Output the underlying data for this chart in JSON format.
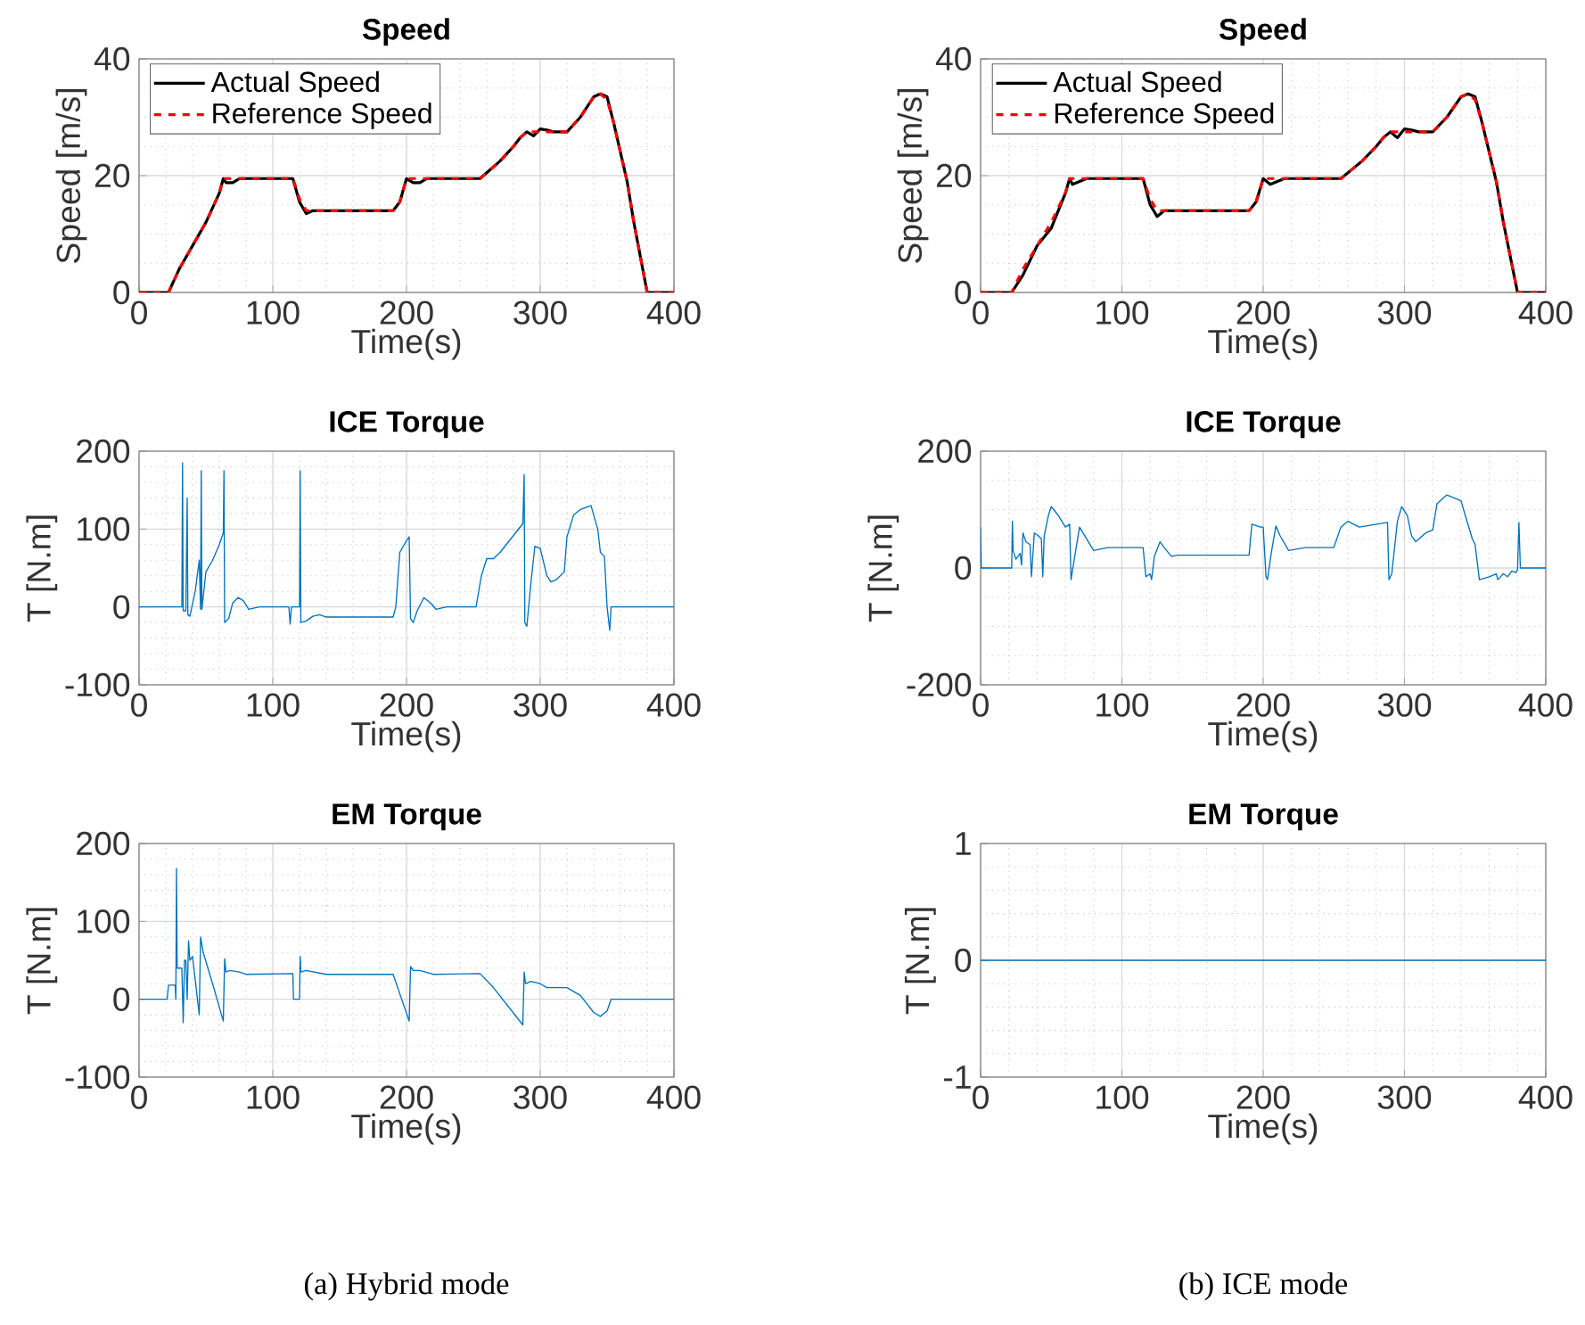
{
  "chart_data": [
    {
      "type": "line",
      "title": "Speed",
      "xlabel": "Time(s)",
      "ylabel": "Speed [m/s]",
      "xlim": [
        0,
        400
      ],
      "ylim": [
        0,
        40
      ],
      "xticks": [
        0,
        100,
        200,
        300,
        400
      ],
      "yticks": [
        0,
        20,
        40
      ],
      "grid": true,
      "legend": "top left",
      "x": [
        0,
        20,
        22,
        30,
        40,
        50,
        60,
        63,
        65,
        70,
        75,
        80,
        110,
        115,
        120,
        125,
        130,
        190,
        195,
        200,
        205,
        210,
        215,
        220,
        255,
        260,
        270,
        280,
        285,
        290,
        295,
        300,
        305,
        310,
        320,
        330,
        340,
        345,
        350,
        355,
        360,
        365,
        370,
        375,
        380,
        382,
        400
      ],
      "series": [
        {
          "name": "Actual Speed",
          "color": "#000000",
          "line_style": "solid",
          "values": [
            0,
            0,
            0,
            4,
            8,
            12,
            17,
            19.5,
            18.8,
            18.8,
            19.5,
            19.5,
            19.5,
            19.5,
            15.5,
            13.5,
            14,
            14,
            15.5,
            19.5,
            18.8,
            18.8,
            19.5,
            19.5,
            19.5,
            20.5,
            22.5,
            25,
            26.5,
            27.5,
            26.8,
            28,
            27.8,
            27.5,
            27.5,
            30,
            33.5,
            34,
            33.5,
            29,
            24,
            19,
            12,
            6,
            0,
            0,
            0
          ]
        },
        {
          "name": "Reference Speed",
          "color": "#ff0000",
          "line_style": "dashed",
          "values": [
            0,
            0,
            0,
            4,
            8,
            12,
            17,
            19.5,
            19.5,
            19.5,
            19.5,
            19.5,
            19.5,
            19.5,
            16,
            14,
            14,
            14,
            15.5,
            19.5,
            19.5,
            19.5,
            19.5,
            19.5,
            19.5,
            20.5,
            22.5,
            25,
            26.5,
            27.5,
            27.5,
            27.5,
            27.5,
            27.5,
            27.5,
            30,
            33.5,
            34,
            33,
            29,
            24,
            19,
            12,
            6,
            0,
            0,
            0
          ]
        }
      ]
    },
    {
      "type": "line",
      "title": "Speed",
      "xlabel": "Time(s)",
      "ylabel": "Speed [m/s]",
      "xlim": [
        0,
        400
      ],
      "ylim": [
        0,
        40
      ],
      "xticks": [
        0,
        100,
        200,
        300,
        400
      ],
      "yticks": [
        0,
        20,
        40
      ],
      "grid": true,
      "legend": "top left",
      "x": [
        0,
        20,
        22,
        30,
        40,
        50,
        60,
        63,
        65,
        70,
        75,
        80,
        110,
        115,
        120,
        125,
        130,
        190,
        195,
        200,
        205,
        210,
        215,
        220,
        255,
        260,
        270,
        280,
        285,
        290,
        295,
        300,
        305,
        310,
        320,
        330,
        340,
        345,
        350,
        355,
        360,
        365,
        370,
        375,
        380,
        382,
        400
      ],
      "series": [
        {
          "name": "Actual Speed",
          "color": "#000000",
          "line_style": "solid",
          "values": [
            0,
            0,
            0,
            3,
            8,
            11,
            17,
            19.5,
            18.5,
            19,
            19.5,
            19.5,
            19.5,
            19.5,
            15,
            13,
            14,
            14,
            15.5,
            19.5,
            18.5,
            19,
            19.5,
            19.5,
            19.5,
            20.5,
            22.5,
            25,
            26.5,
            27.5,
            26.5,
            28,
            27.8,
            27.5,
            27.5,
            30,
            33.5,
            34,
            33.5,
            29,
            24,
            19,
            12,
            6,
            0,
            0,
            0
          ]
        },
        {
          "name": "Reference Speed",
          "color": "#ff0000",
          "line_style": "dashed",
          "values": [
            0,
            0,
            0,
            4,
            8,
            12,
            17,
            19.5,
            19.5,
            19.5,
            19.5,
            19.5,
            19.5,
            19.5,
            16,
            14,
            14,
            14,
            15.5,
            19.5,
            19.5,
            19.5,
            19.5,
            19.5,
            19.5,
            20.5,
            22.5,
            25,
            26.5,
            27.5,
            27.5,
            27.5,
            27.5,
            27.5,
            27.5,
            30,
            33.5,
            34,
            33,
            29,
            24,
            19,
            12,
            6,
            0,
            0,
            0
          ]
        }
      ]
    },
    {
      "type": "line",
      "title": "ICE Torque",
      "xlabel": "Time(s)",
      "ylabel": "T [N.m]",
      "xlim": [
        0,
        400
      ],
      "ylim": [
        -100,
        200
      ],
      "xticks": [
        0,
        100,
        200,
        300,
        400
      ],
      "yticks": [
        -100,
        0,
        100,
        200
      ],
      "grid": true,
      "series": [
        {
          "color": "#0072bd",
          "x": [
            0,
            32,
            32.5,
            33,
            35,
            36,
            36.5,
            38,
            42,
            45,
            46,
            46.5,
            47,
            50,
            55,
            60,
            63,
            63.5,
            64,
            67,
            70,
            74,
            78,
            82,
            90,
            112,
            113,
            114,
            120,
            120.5,
            121,
            125,
            130,
            135,
            140,
            190,
            192,
            195,
            200,
            202,
            203,
            205,
            208,
            213,
            218,
            222,
            230,
            252,
            256,
            260,
            265,
            270,
            287,
            288,
            288.5,
            290,
            293,
            296,
            300,
            305,
            308,
            312,
            318,
            320,
            325,
            330,
            338,
            343,
            345,
            348,
            350,
            352,
            353,
            400
          ],
          "values": [
            0,
            0,
            185,
            -5,
            -5,
            140,
            -10,
            -12,
            20,
            60,
            -3,
            175,
            -3,
            45,
            60,
            80,
            95,
            175,
            -20,
            -15,
            5,
            12,
            8,
            -3,
            0,
            0,
            -22,
            0,
            0,
            175,
            -20,
            -18,
            -12,
            -10,
            -13,
            -13,
            0,
            70,
            85,
            90,
            -15,
            -20,
            -5,
            12,
            5,
            -3,
            0,
            0,
            40,
            62,
            62,
            70,
            107,
            170,
            -20,
            -25,
            30,
            78,
            75,
            40,
            32,
            35,
            45,
            90,
            118,
            125,
            130,
            100,
            70,
            65,
            0,
            -30,
            0,
            0
          ]
        }
      ]
    },
    {
      "type": "line",
      "title": "ICE Torque",
      "xlabel": "Time(s)",
      "ylabel": "T [N.m]",
      "xlim": [
        0,
        400
      ],
      "ylim": [
        -200,
        200
      ],
      "xticks": [
        0,
        100,
        200,
        300,
        400
      ],
      "yticks": [
        -200,
        0,
        200
      ],
      "grid": true,
      "series": [
        {
          "color": "#0072bd",
          "x": [
            0,
            0.5,
            22,
            22.5,
            23,
            25,
            28,
            29,
            30,
            32,
            35,
            36,
            38,
            41,
            43,
            44,
            45,
            48,
            50,
            55,
            60,
            63,
            64,
            66,
            70,
            75,
            80,
            90,
            115,
            117,
            120,
            121,
            123,
            127,
            130,
            135,
            140,
            190,
            192,
            198,
            200,
            202,
            203,
            206,
            209,
            212,
            218,
            230,
            250,
            255,
            260,
            268,
            288,
            289,
            291,
            295,
            298,
            302,
            305,
            308,
            315,
            320,
            323,
            330,
            340,
            343,
            348,
            350,
            353,
            360,
            365,
            366,
            370,
            373,
            376,
            379,
            380,
            381,
            382,
            400
          ],
          "values": [
            70,
            0,
            0,
            80,
            30,
            15,
            25,
            5,
            60,
            45,
            40,
            -15,
            60,
            55,
            50,
            -15,
            55,
            90,
            105,
            90,
            70,
            75,
            -20,
            10,
            70,
            50,
            30,
            35,
            35,
            -15,
            -10,
            -20,
            20,
            45,
            35,
            20,
            22,
            22,
            75,
            70,
            70,
            -15,
            -20,
            30,
            72,
            55,
            30,
            35,
            35,
            70,
            80,
            70,
            78,
            -20,
            -10,
            80,
            105,
            90,
            55,
            45,
            60,
            65,
            110,
            125,
            115,
            90,
            50,
            40,
            -20,
            -15,
            -10,
            -20,
            -10,
            -15,
            -5,
            -8,
            -3,
            78,
            0,
            0
          ]
        }
      ]
    },
    {
      "type": "line",
      "title": "EM Torque",
      "xlabel": "Time(s)",
      "ylabel": "T [N.m]",
      "xlim": [
        0,
        400
      ],
      "ylim": [
        -100,
        200
      ],
      "xticks": [
        0,
        100,
        200,
        300,
        400
      ],
      "yticks": [
        -100,
        0,
        100,
        200
      ],
      "grid": true,
      "annotations": [
        "(a) Hybrid mode"
      ],
      "series": [
        {
          "color": "#0072bd",
          "x": [
            0,
            21,
            22,
            27,
            27.5,
            28,
            28.5,
            32,
            33,
            34,
            35,
            36,
            37,
            38,
            40,
            45,
            46,
            48,
            55,
            63,
            64,
            65,
            68,
            75,
            80,
            115,
            115.5,
            120,
            120.5,
            121,
            125,
            140,
            190,
            202,
            203,
            205,
            210,
            220,
            255,
            265,
            287,
            288,
            289,
            293,
            300,
            305,
            320,
            330,
            340,
            345,
            350,
            353,
            400
          ],
          "values": [
            0,
            0,
            18,
            18,
            0,
            168,
            40,
            40,
            -30,
            50,
            50,
            0,
            75,
            50,
            55,
            -20,
            80,
            60,
            20,
            -28,
            52,
            35,
            37,
            35,
            32,
            33,
            0,
            0,
            55,
            35,
            37,
            32,
            32,
            -28,
            42,
            37,
            37,
            32,
            33,
            15,
            -33,
            35,
            20,
            23,
            20,
            15,
            15,
            5,
            -17,
            -22,
            -15,
            0,
            0
          ]
        }
      ]
    },
    {
      "type": "line",
      "title": "EM Torque",
      "xlabel": "Time(s)",
      "ylabel": "T [N.m]",
      "xlim": [
        0,
        400
      ],
      "ylim": [
        -1,
        1
      ],
      "xticks": [
        0,
        100,
        200,
        300,
        400
      ],
      "yticks": [
        -1,
        0,
        1
      ],
      "grid": true,
      "annotations": [
        "(b) ICE mode"
      ],
      "series": [
        {
          "color": "#0072bd",
          "x": [
            0,
            400
          ],
          "values": [
            0,
            0
          ]
        }
      ]
    }
  ]
}
